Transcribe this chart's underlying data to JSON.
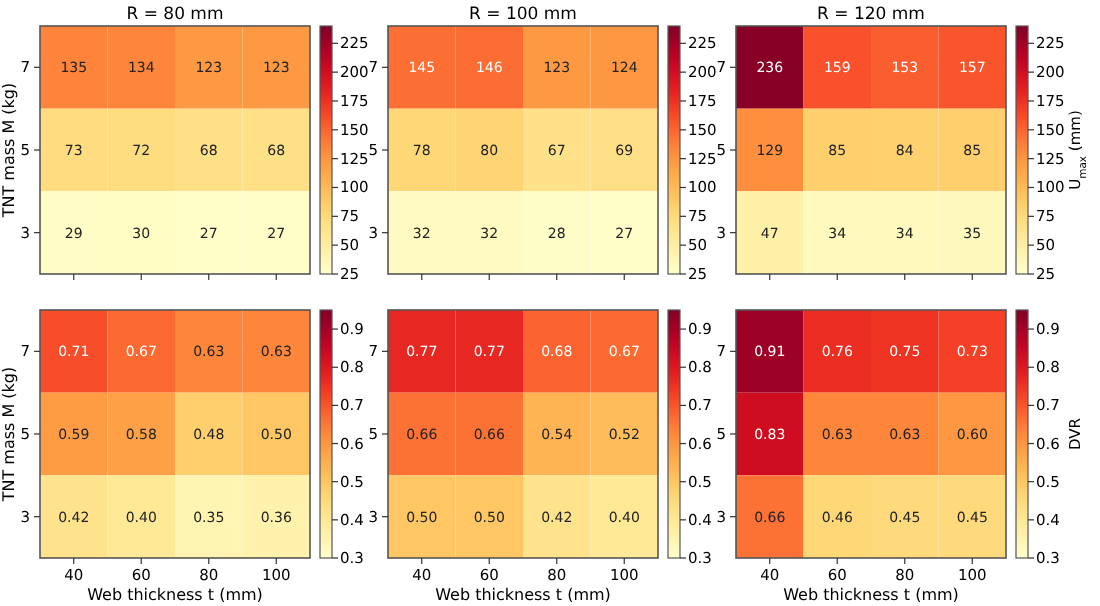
{
  "chart_data": [
    {
      "type": "heatmap",
      "title": "R = 80 mm",
      "ylabel": "TNT mass M (kg)",
      "categories": [
        "40",
        "60",
        "80",
        "100"
      ],
      "y_categories": [
        "7",
        "5",
        "3"
      ],
      "cells": [
        [
          135,
          134,
          123,
          123
        ],
        [
          73,
          72,
          68,
          68
        ],
        [
          29,
          30,
          27,
          27
        ]
      ],
      "data_labels": true,
      "clim": [
        25,
        240
      ],
      "cticks": [
        25,
        50,
        75,
        100,
        125,
        150,
        175,
        200,
        225
      ],
      "tick_labels": "y"
    },
    {
      "type": "heatmap",
      "title": "R = 100 mm",
      "categories": [
        "40",
        "60",
        "80",
        "100"
      ],
      "y_categories": [
        "7",
        "5",
        "3"
      ],
      "cells": [
        [
          145,
          146,
          123,
          124
        ],
        [
          78,
          80,
          67,
          69
        ],
        [
          32,
          32,
          28,
          27
        ]
      ],
      "data_labels": true,
      "clim": [
        25,
        240
      ],
      "cticks": [
        25,
        50,
        75,
        100,
        125,
        150,
        175,
        200,
        225
      ],
      "tick_labels": "y"
    },
    {
      "type": "heatmap",
      "title": "R = 120 mm",
      "clabel": "U$_{max}$ (mm)",
      "categories": [
        "40",
        "60",
        "80",
        "100"
      ],
      "y_categories": [
        "7",
        "5",
        "3"
      ],
      "cells": [
        [
          236,
          159,
          153,
          157
        ],
        [
          129,
          85,
          84,
          85
        ],
        [
          47,
          34,
          34,
          35
        ]
      ],
      "data_labels": true,
      "clim": [
        25,
        240
      ],
      "cticks": [
        25,
        50,
        75,
        100,
        125,
        150,
        175,
        200,
        225
      ],
      "tick_labels": "y"
    },
    {
      "type": "heatmap",
      "xlabel": "Web thickness t (mm)",
      "ylabel": "TNT mass M (kg)",
      "categories": [
        "40",
        "60",
        "80",
        "100"
      ],
      "y_categories": [
        "7",
        "5",
        "3"
      ],
      "cells": [
        [
          0.71,
          0.67,
          0.63,
          0.63
        ],
        [
          0.59,
          0.58,
          0.48,
          0.5
        ],
        [
          0.42,
          0.4,
          0.35,
          0.36
        ]
      ],
      "cell_labels": [
        [
          "0.71",
          "0.67",
          "0.63",
          "0.63"
        ],
        [
          "0.59",
          "0.58",
          "0.48",
          "0.50"
        ],
        [
          "0.42",
          "0.40",
          "0.35",
          "0.36"
        ]
      ],
      "clim": [
        0.3,
        0.95
      ],
      "cticks": [
        0.3,
        0.4,
        0.5,
        0.6,
        0.7,
        0.8,
        0.9
      ]
    },
    {
      "type": "heatmap",
      "xlabel": "Web thickness t (mm)",
      "categories": [
        "40",
        "60",
        "80",
        "100"
      ],
      "y_categories": [
        "7",
        "5",
        "3"
      ],
      "cells": [
        [
          0.77,
          0.77,
          0.68,
          0.67
        ],
        [
          0.66,
          0.66,
          0.54,
          0.52
        ],
        [
          0.5,
          0.5,
          0.42,
          0.4
        ]
      ],
      "cell_labels": [
        [
          "0.77",
          "0.77",
          "0.68",
          "0.67"
        ],
        [
          "0.66",
          "0.66",
          "0.54",
          "0.52"
        ],
        [
          "0.50",
          "0.50",
          "0.42",
          "0.40"
        ]
      ],
      "clim": [
        0.3,
        0.95
      ],
      "cticks": [
        0.3,
        0.4,
        0.5,
        0.6,
        0.7,
        0.8,
        0.9
      ]
    },
    {
      "type": "heatmap",
      "xlabel": "Web thickness t (mm)",
      "clabel": "DVR",
      "categories": [
        "40",
        "60",
        "80",
        "100"
      ],
      "y_categories": [
        "7",
        "5",
        "3"
      ],
      "cells": [
        [
          0.91,
          0.76,
          0.75,
          0.73
        ],
        [
          0.83,
          0.63,
          0.63,
          0.6
        ],
        [
          0.66,
          0.46,
          0.45,
          0.45
        ]
      ],
      "cell_labels": [
        [
          "0.91",
          "0.76",
          "0.75",
          "0.73"
        ],
        [
          "0.83",
          "0.63",
          "0.63",
          "0.60"
        ],
        [
          "0.66",
          "0.46",
          "0.45",
          "0.45"
        ]
      ],
      "clim": [
        0.3,
        0.95
      ],
      "cticks": [
        0.3,
        0.4,
        0.5,
        0.6,
        0.7,
        0.8,
        0.9
      ]
    }
  ]
}
